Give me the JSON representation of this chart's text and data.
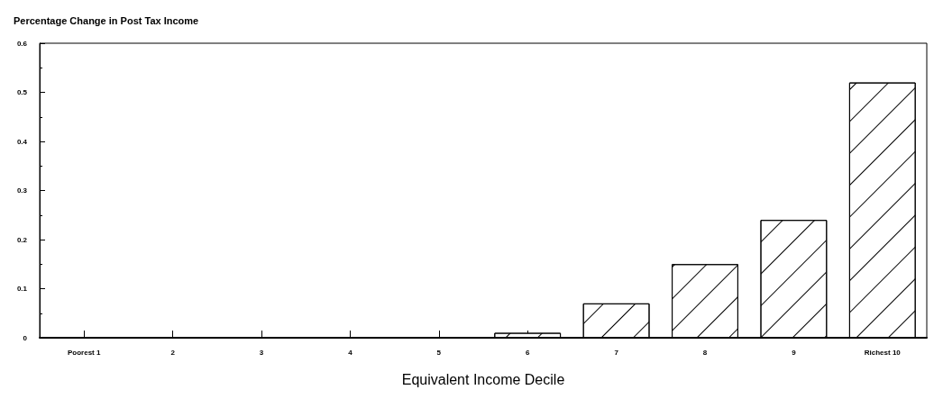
{
  "chart_data": {
    "type": "bar",
    "title": "Percentage Change in Post Tax Income",
    "xlabel": "Equivalent Income Decile",
    "categories": [
      "Poorest 1",
      "2",
      "3",
      "4",
      "5",
      "6",
      "7",
      "8",
      "9",
      "Richest 10"
    ],
    "values": [
      0,
      0,
      0,
      0,
      0,
      0.01,
      0.07,
      0.15,
      0.24,
      0.52
    ],
    "color": "#ffffff",
    "ylim": [
      0,
      0.6
    ],
    "yticks": [
      0,
      0.1,
      0.2,
      0.3,
      0.4,
      0.5,
      0.6
    ],
    "grid": false
  }
}
